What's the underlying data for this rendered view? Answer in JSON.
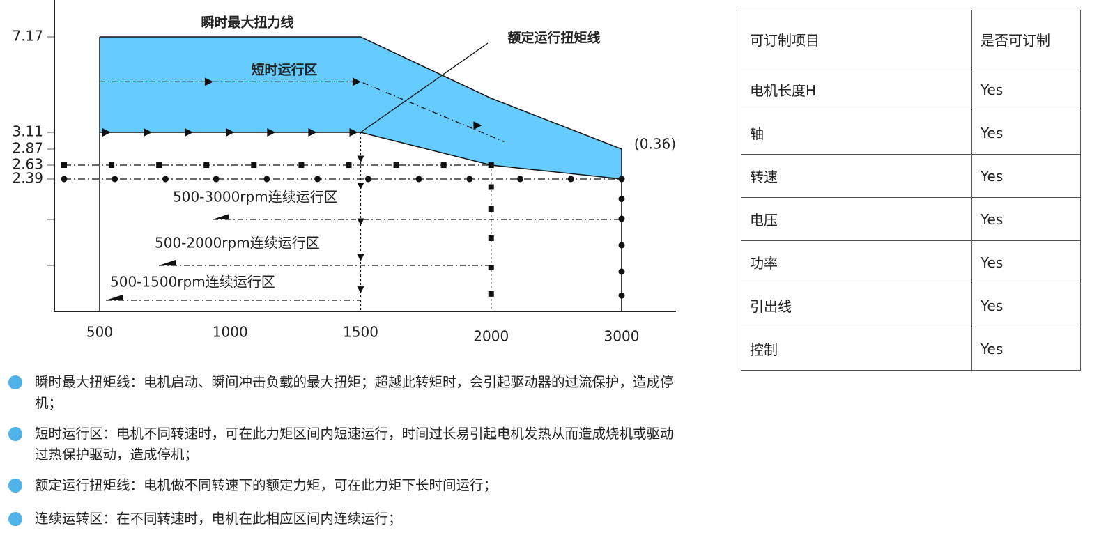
{
  "chart_data": {
    "type": "area",
    "categories": [
      "500",
      "1000",
      "1500",
      "2000",
      "3000"
    ],
    "series": [
      {
        "name": "瞬时最大扭力线",
        "color": "#66ccff",
        "values": [
          7.17,
          7.17,
          7.17,
          4.56,
          2.87
        ]
      },
      {
        "name": "额定运行扭矩线",
        "color": "#66ccff",
        "values": [
          3.11,
          3.11,
          3.11,
          2.63,
          2.39
        ]
      }
    ],
    "ylim": [
      0,
      7.5
    ],
    "yticks": [
      2.39,
      2.63,
      2.87,
      3.11,
      7.17
    ],
    "annotations": {
      "short_zone": "短时运行区",
      "end_note": "(0.36)",
      "continuous_zones": [
        "500-3000rpm连续运行区",
        "500-2000rpm连续运行区",
        "500-1500rpm连续运行区"
      ]
    }
  },
  "table": {
    "header": [
      "可订制项目",
      "是否可订制"
    ],
    "rows": [
      [
        "电机长度H",
        "Yes"
      ],
      [
        "轴",
        "Yes"
      ],
      [
        "转速",
        "Yes"
      ],
      [
        "电压",
        "Yes"
      ],
      [
        "功率",
        "Yes"
      ],
      [
        "引出线",
        "Yes"
      ],
      [
        "控制",
        "Yes"
      ]
    ]
  },
  "notes": [
    "瞬时最大扭矩线：电机启动、瞬间冲击负载的最大扭矩；超越此转矩时，会引起驱动器的过流保护，造成停机；",
    "短时运行区：电机不同转速时，可在此力矩区间内短速运行，时间过长易引起电机发热从而造成烧机或驱动过热保护驱动，造成停机；",
    "额定运行扭矩线：电机做不同转速下的额定力矩，可在此力矩下长时间运行；",
    "连续运转区：在不同转速时，电机在此相应区间内连续运行；"
  ]
}
